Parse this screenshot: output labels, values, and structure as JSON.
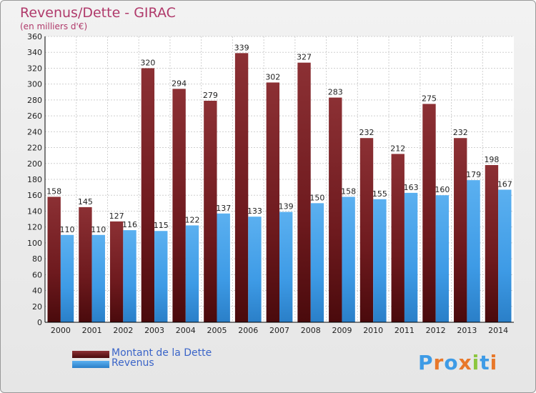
{
  "chart_data": {
    "type": "bar",
    "title": "Revenus/Dette - GIRAC",
    "subtitle": "(en milliers d'€)",
    "categories": [
      "2000",
      "2001",
      "2002",
      "2003",
      "2004",
      "2005",
      "2006",
      "2007",
      "2008",
      "2009",
      "2010",
      "2011",
      "2012",
      "2013",
      "2014"
    ],
    "series": [
      {
        "name": "Montant de la Dette",
        "color": "#7a1e22",
        "values": [
          158,
          145,
          127,
          320,
          294,
          279,
          339,
          302,
          327,
          283,
          232,
          212,
          275,
          232,
          198
        ]
      },
      {
        "name": "Revenus",
        "color": "#3e9be6",
        "values": [
          110,
          110,
          116,
          115,
          122,
          137,
          133,
          139,
          150,
          158,
          155,
          163,
          160,
          179,
          167
        ]
      }
    ],
    "ylim": [
      0,
      360
    ],
    "ytick_step": 20,
    "grid": true,
    "legend": "bottom-left"
  },
  "logo": {
    "letters": [
      "P",
      "r",
      "o",
      "x",
      "i",
      "t",
      "i"
    ],
    "colors": [
      "#3e9be6",
      "#e8782a",
      "#3e9be6",
      "#e8782a",
      "#8cc63f",
      "#3e9be6",
      "#e8782a"
    ]
  }
}
